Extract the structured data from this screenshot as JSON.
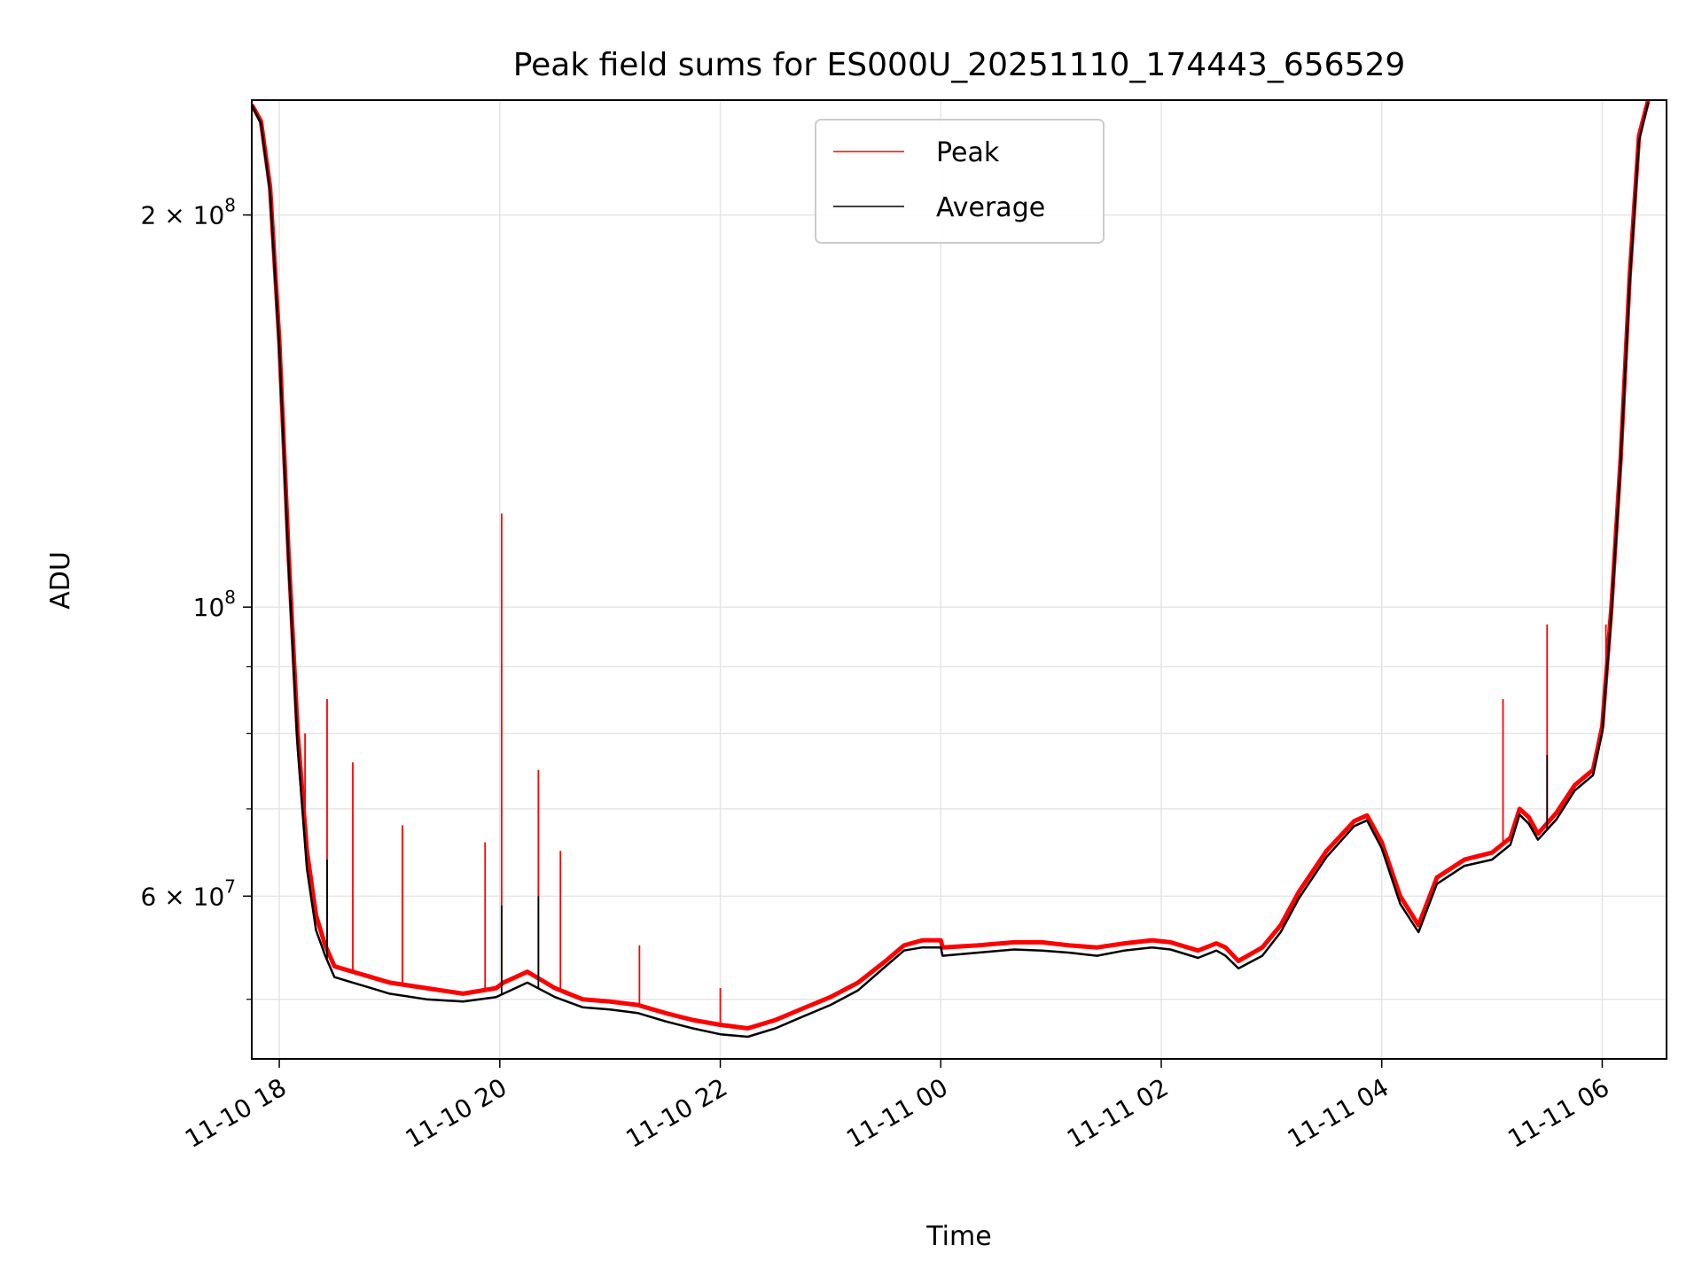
{
  "chart_data": {
    "type": "line",
    "title": "Peak field sums for ES000U_20251110_174443_656529",
    "xlabel": "Time",
    "ylabel": "ADU",
    "y_scale": "log",
    "ylim": [
      45000000,
      245000000
    ],
    "xlim": [
      "2025-11-10 17:45",
      "2025-11-11 06:35"
    ],
    "grid": true,
    "legend_position": "top-center",
    "x_ticks": [
      "11-10 18",
      "11-10 20",
      "11-10 22",
      "11-11 00",
      "11-11 02",
      "11-11 04",
      "11-11 06"
    ],
    "y_tick_labels": [
      {
        "value": 200000000,
        "mantissa": "2",
        "exponent": "8"
      },
      {
        "value": 100000000,
        "mantissa": "",
        "exponent": "8"
      },
      {
        "value": 60000000,
        "mantissa": "6",
        "exponent": "7"
      }
    ],
    "series": [
      {
        "name": "Peak",
        "color": "#ff0000",
        "x": [
          "2025-11-10 17:45",
          "2025-11-10 17:50",
          "2025-11-10 17:55",
          "2025-11-10 18:00",
          "2025-11-10 18:05",
          "2025-11-10 18:10",
          "2025-11-10 18:15",
          "2025-11-10 18:20",
          "2025-11-10 18:25",
          "2025-11-10 18:30",
          "2025-11-10 18:40",
          "2025-11-10 18:50",
          "2025-11-10 19:00",
          "2025-11-10 19:20",
          "2025-11-10 19:40",
          "2025-11-10 19:58",
          "2025-11-10 20:02",
          "2025-11-10 20:15",
          "2025-11-10 20:30",
          "2025-11-10 20:45",
          "2025-11-10 21:00",
          "2025-11-10 21:15",
          "2025-11-10 21:30",
          "2025-11-10 21:45",
          "2025-11-10 22:00",
          "2025-11-10 22:15",
          "2025-11-10 22:30",
          "2025-11-10 22:45",
          "2025-11-10 23:00",
          "2025-11-10 23:15",
          "2025-11-10 23:30",
          "2025-11-10 23:40",
          "2025-11-10 23:50",
          "2025-11-11 00:00",
          "2025-11-11 00:01",
          "2025-11-11 00:20",
          "2025-11-11 00:40",
          "2025-11-11 00:55",
          "2025-11-11 01:10",
          "2025-11-11 01:25",
          "2025-11-11 01:40",
          "2025-11-11 01:55",
          "2025-11-11 02:05",
          "2025-11-11 02:20",
          "2025-11-11 02:30",
          "2025-11-11 02:35",
          "2025-11-11 02:42",
          "2025-11-11 02:55",
          "2025-11-11 03:05",
          "2025-11-11 03:15",
          "2025-11-11 03:30",
          "2025-11-11 03:45",
          "2025-11-11 03:52",
          "2025-11-11 04:00",
          "2025-11-11 04:10",
          "2025-11-11 04:20",
          "2025-11-11 04:30",
          "2025-11-11 04:45",
          "2025-11-11 05:00",
          "2025-11-11 05:10",
          "2025-11-11 05:15",
          "2025-11-11 05:20",
          "2025-11-11 05:25",
          "2025-11-11 05:35",
          "2025-11-11 05:45",
          "2025-11-11 05:55",
          "2025-11-11 06:00",
          "2025-11-11 06:05",
          "2025-11-11 06:10",
          "2025-11-11 06:15",
          "2025-11-11 06:20",
          "2025-11-11 06:25"
        ],
        "y": [
          243000000,
          236000000,
          210000000,
          160000000,
          110000000,
          80000000,
          65000000,
          58000000,
          55000000,
          53000000,
          52500000,
          52000000,
          51500000,
          51000000,
          50500000,
          51000000,
          51500000,
          52500000,
          51000000,
          50000000,
          49800000,
          49500000,
          48800000,
          48200000,
          47800000,
          47500000,
          48200000,
          49200000,
          50200000,
          51500000,
          53500000,
          55000000,
          55500000,
          55500000,
          54800000,
          55000000,
          55300000,
          55300000,
          55000000,
          54800000,
          55200000,
          55500000,
          55300000,
          54500000,
          55200000,
          54800000,
          53500000,
          54800000,
          57000000,
          60500000,
          65000000,
          68500000,
          69200000,
          66000000,
          60000000,
          57000000,
          62000000,
          64000000,
          64800000,
          66500000,
          70000000,
          69000000,
          67000000,
          69500000,
          73000000,
          75000000,
          81000000,
          100000000,
          130000000,
          180000000,
          230000000,
          245000000
        ],
        "spikes": [
          {
            "x": "2025-11-10 18:14",
            "y": 80000000
          },
          {
            "x": "2025-11-10 18:26",
            "y": 85000000
          },
          {
            "x": "2025-11-10 18:40",
            "y": 76000000
          },
          {
            "x": "2025-11-10 19:07",
            "y": 68000000
          },
          {
            "x": "2025-11-10 19:52",
            "y": 66000000
          },
          {
            "x": "2025-11-10 20:01",
            "y": 118000000
          },
          {
            "x": "2025-11-10 20:21",
            "y": 75000000
          },
          {
            "x": "2025-11-10 20:33",
            "y": 65000000
          },
          {
            "x": "2025-11-10 21:16",
            "y": 55000000
          },
          {
            "x": "2025-11-10 22:00",
            "y": 51000000
          },
          {
            "x": "2025-11-11 05:06",
            "y": 85000000
          },
          {
            "x": "2025-11-11 05:30",
            "y": 97000000
          },
          {
            "x": "2025-11-11 06:02",
            "y": 97000000
          }
        ]
      },
      {
        "name": "Average",
        "color": "#000000",
        "x": [
          "2025-11-10 17:45",
          "2025-11-10 17:50",
          "2025-11-10 17:55",
          "2025-11-10 18:00",
          "2025-11-10 18:05",
          "2025-11-10 18:10",
          "2025-11-10 18:15",
          "2025-11-10 18:20",
          "2025-11-10 18:25",
          "2025-11-10 18:30",
          "2025-11-10 18:40",
          "2025-11-10 18:50",
          "2025-11-10 19:00",
          "2025-11-10 19:20",
          "2025-11-10 19:40",
          "2025-11-10 19:58",
          "2025-11-10 20:02",
          "2025-11-10 20:15",
          "2025-11-10 20:30",
          "2025-11-10 20:45",
          "2025-11-10 21:00",
          "2025-11-10 21:15",
          "2025-11-10 21:30",
          "2025-11-10 21:45",
          "2025-11-10 22:00",
          "2025-11-10 22:15",
          "2025-11-10 22:30",
          "2025-11-10 22:45",
          "2025-11-10 23:00",
          "2025-11-10 23:15",
          "2025-11-10 23:30",
          "2025-11-10 23:40",
          "2025-11-10 23:50",
          "2025-11-11 00:00",
          "2025-11-11 00:01",
          "2025-11-11 00:20",
          "2025-11-11 00:40",
          "2025-11-11 00:55",
          "2025-11-11 01:10",
          "2025-11-11 01:25",
          "2025-11-11 01:40",
          "2025-11-11 01:55",
          "2025-11-11 02:05",
          "2025-11-11 02:20",
          "2025-11-11 02:30",
          "2025-11-11 02:35",
          "2025-11-11 02:42",
          "2025-11-11 02:55",
          "2025-11-11 03:05",
          "2025-11-11 03:15",
          "2025-11-11 03:30",
          "2025-11-11 03:45",
          "2025-11-11 03:52",
          "2025-11-11 04:00",
          "2025-11-11 04:10",
          "2025-11-11 04:20",
          "2025-11-11 04:30",
          "2025-11-11 04:45",
          "2025-11-11 05:00",
          "2025-11-11 05:10",
          "2025-11-11 05:15",
          "2025-11-11 05:20",
          "2025-11-11 05:25",
          "2025-11-11 05:35",
          "2025-11-11 05:45",
          "2025-11-11 05:55",
          "2025-11-11 06:00",
          "2025-11-11 06:05",
          "2025-11-11 06:10",
          "2025-11-11 06:15",
          "2025-11-11 06:20",
          "2025-11-11 06:25"
        ],
        "y": [
          243000000,
          235000000,
          208000000,
          158000000,
          108000000,
          78000000,
          63000000,
          56500000,
          54000000,
          52000000,
          51500000,
          51000000,
          50500000,
          50000000,
          49800000,
          50200000,
          50500000,
          51500000,
          50200000,
          49300000,
          49100000,
          48800000,
          48100000,
          47500000,
          47000000,
          46800000,
          47500000,
          48500000,
          49500000,
          50800000,
          53000000,
          54500000,
          54800000,
          54800000,
          54000000,
          54300000,
          54600000,
          54500000,
          54300000,
          54000000,
          54500000,
          54800000,
          54600000,
          53800000,
          54500000,
          54000000,
          52800000,
          54000000,
          56300000,
          59800000,
          64300000,
          67900000,
          68600000,
          65300000,
          59200000,
          56300000,
          61300000,
          63300000,
          64000000,
          65700000,
          69300000,
          68200000,
          66300000,
          68700000,
          72300000,
          74300000,
          80200000,
          99000000,
          129000000,
          178000000,
          228000000,
          244000000
        ],
        "spikes": [
          {
            "x": "2025-11-10 18:26",
            "y": 64000000
          },
          {
            "x": "2025-11-10 20:01",
            "y": 59000000
          },
          {
            "x": "2025-11-10 20:21",
            "y": 60000000
          },
          {
            "x": "2025-11-11 05:30",
            "y": 77000000
          }
        ]
      }
    ]
  }
}
